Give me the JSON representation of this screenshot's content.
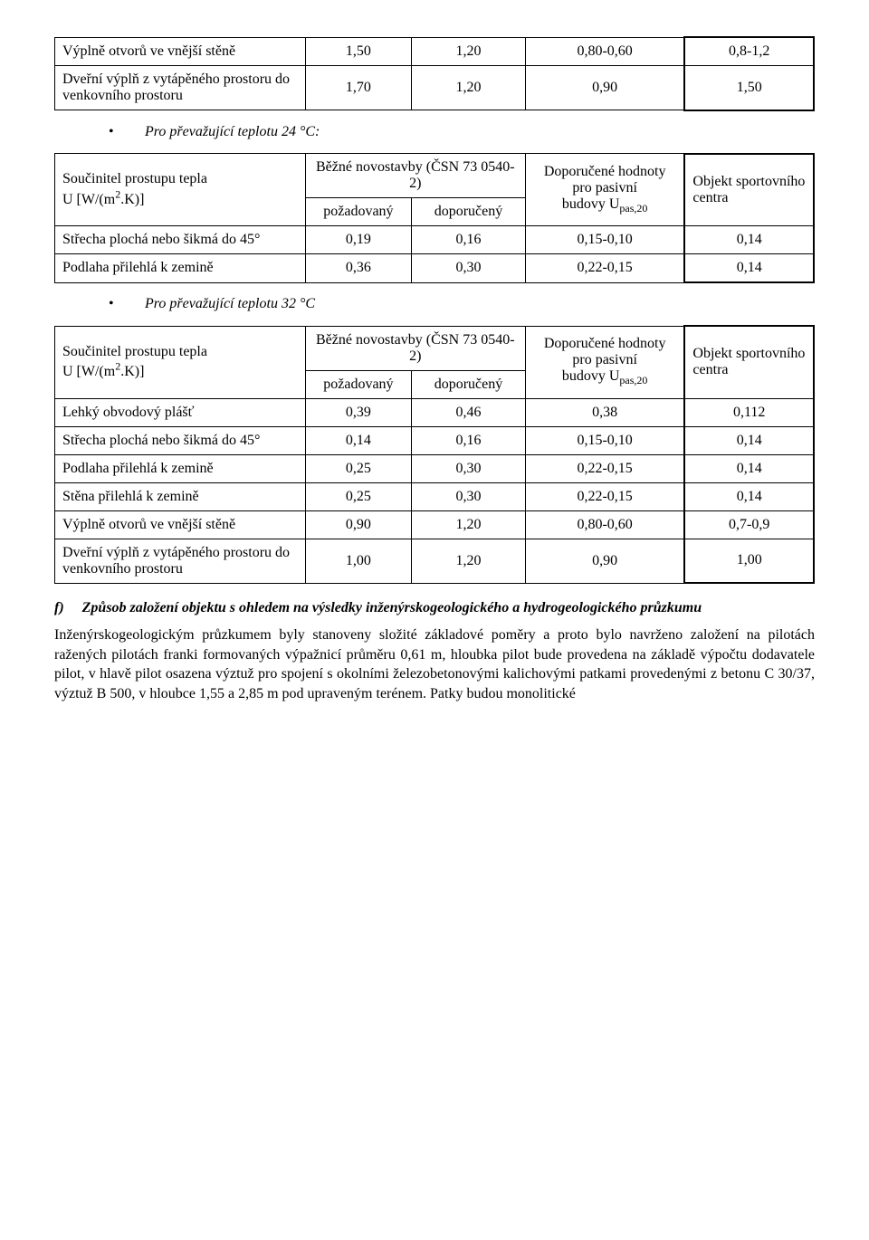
{
  "table1": {
    "rows": [
      {
        "label": "Výplně otvorů ve vnější stěně",
        "c1": "1,50",
        "c2": "1,20",
        "c3": "0,80-0,60",
        "c4": "0,8-1,2"
      },
      {
        "label": "Dveřní výplň z vytápěného prostoru do venkovního prostoru",
        "c1": "1,70",
        "c2": "1,20",
        "c3": "0,90",
        "c4": "1,50"
      }
    ]
  },
  "bullet1": "Pro převažující teplotu 24 °C:",
  "table2": {
    "header": {
      "leftTop": "Součinitel prostupu tepla",
      "leftBottom_html": "U [W/(m<sup>2</sup>.K)]",
      "midTop": "Běžné novostavby (ČSN 73 0540-2)",
      "midSub1": "požadovaný",
      "midSub2": "doporučený",
      "rightTop": "Doporučené hodnoty pro pasivní",
      "rightBottom_html": "budovy U<sub>pas,20</sub>",
      "col4Top": "Objekt sportovního",
      "col4Bottom": "centra"
    },
    "rows": [
      {
        "label": "Střecha plochá nebo šikmá do 45°",
        "c1": "0,19",
        "c2": "0,16",
        "c3": "0,15-0,10",
        "c4": "0,14"
      },
      {
        "label": "Podlaha přilehlá k zemině",
        "c1": "0,36",
        "c2": "0,30",
        "c3": "0,22-0,15",
        "c4": "0,14"
      }
    ]
  },
  "bullet2": "Pro převažující teplotu 32 °C",
  "table3": {
    "header": {
      "leftTop": "Součinitel prostupu tepla",
      "leftBottom_html": "U [W/(m<sup>2</sup>.K)]",
      "midTop": "Běžné novostavby (ČSN 73 0540-2)",
      "midSub1": "požadovaný",
      "midSub2": "doporučený",
      "rightTop": "Doporučené hodnoty pro pasivní",
      "rightBottom_html": "budovy U<sub>pas,20</sub>",
      "col4Top": "Objekt sportovního",
      "col4Bottom": "centra"
    },
    "rows": [
      {
        "label": "Lehký obvodový plášť",
        "c1": "0,39",
        "c2": "0,46",
        "c3": "0,38",
        "c4": "0,112"
      },
      {
        "label": "Střecha plochá nebo šikmá do 45°",
        "c1": "0,14",
        "c2": "0,16",
        "c3": "0,15-0,10",
        "c4": "0,14"
      },
      {
        "label": "Podlaha přilehlá k zemině",
        "c1": "0,25",
        "c2": "0,30",
        "c3": "0,22-0,15",
        "c4": "0,14"
      },
      {
        "label": "Stěna přilehlá k zemině",
        "c1": "0,25",
        "c2": "0,30",
        "c3": "0,22-0,15",
        "c4": "0,14"
      },
      {
        "label": "Výplně otvorů ve vnější stěně",
        "c1": "0,90",
        "c2": "1,20",
        "c3": "0,80-0,60",
        "c4": "0,7-0,9"
      },
      {
        "label": "Dveřní výplň z vytápěného prostoru do venkovního prostoru",
        "c1": "1,00",
        "c2": "1,20",
        "c3": "0,90",
        "c4": "1,00"
      }
    ]
  },
  "section_f": {
    "letter": "f)",
    "title": "Způsob založení objektu s ohledem na výsledky inženýrskogeologického a hydrogeologického průzkumu",
    "paragraph": "Inženýrskogeologickým průzkumem byly stanoveny složité základové poměry a proto bylo navrženo založení na pilotách ražených pilotách franki formovaných výpažnicí průměru 0,61 m, hloubka pilot bude provedena na základě výpočtu dodavatele pilot, v hlavě pilot osazena výztuž pro spojení s okolními železobetonovými kalichovými patkami provedenými z betonu C 30/37, výztuž B 500, v hloubce 1,55 a 2,85 m pod upraveným terénem. Patky budou monolitické"
  },
  "colwidths": {
    "label": "33%",
    "c1": "14%",
    "c2": "15%",
    "c3": "21%",
    "c4": "17%"
  }
}
